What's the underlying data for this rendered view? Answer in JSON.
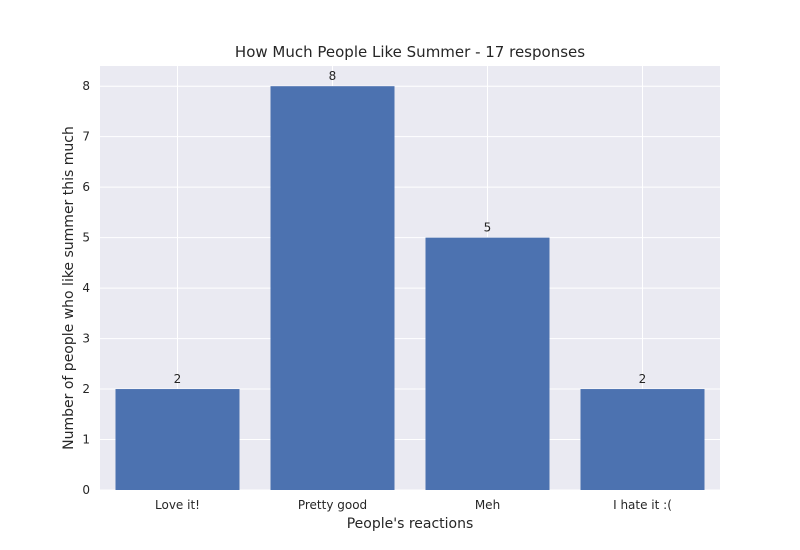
{
  "chart_data": {
    "type": "bar",
    "title": "How Much People Like Summer - 17 responses",
    "xlabel": "People's reactions",
    "ylabel": "Number of people who like summer this much",
    "categories": [
      "Love it!",
      "Pretty good",
      "Meh",
      "I hate it :("
    ],
    "values": [
      2,
      8,
      5,
      2
    ],
    "data_labels": [
      "2",
      "8",
      "5",
      "2"
    ],
    "ylim": [
      0,
      8.4
    ],
    "yticks": [
      0,
      1,
      2,
      3,
      4,
      5,
      6,
      7,
      8
    ],
    "ytick_labels": [
      "0",
      "1",
      "2",
      "3",
      "4",
      "5",
      "6",
      "7",
      "8"
    ],
    "grid": true,
    "legend": "none",
    "colors": {
      "bar": "#4c72b0",
      "plot_background": "#eaeaf2",
      "grid": "#ffffff",
      "text": "#262626"
    }
  }
}
